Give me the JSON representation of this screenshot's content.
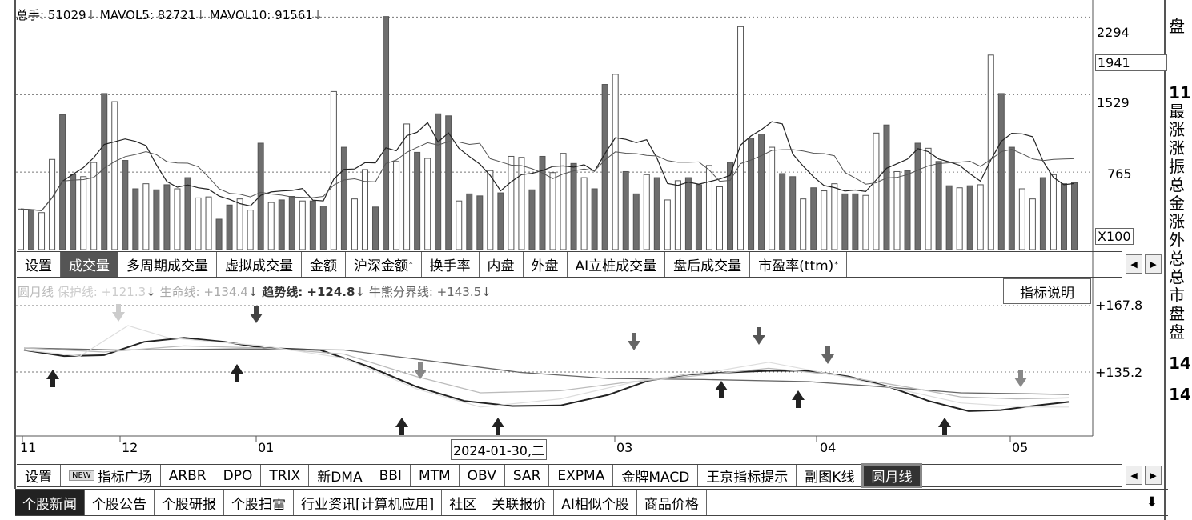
{
  "volume_legend": {
    "total": "总手: 51029",
    "mavol5": "MAVOL5: 82721",
    "mavol10": "MAVOL10: 91561",
    "arrow": "↓"
  },
  "volume_axis": {
    "l2294": "2294",
    "l1941": "1941",
    "l1529": "1529",
    "l765": "765",
    "unit": "X100"
  },
  "tabs1": [
    "设置",
    "成交量",
    "多周期成交量",
    "虚拟成交量",
    "金额",
    "沪深金额",
    "换手率",
    "内盘",
    "外盘",
    "AI立桩成交量",
    "盘后成交量",
    "市盈率(ttm)"
  ],
  "tabs1_star": "*",
  "indicator_legend": {
    "huyue": "圆月线",
    "baohu": "保护线: +121.3",
    "shengming": "生命线: +134.4",
    "qushi": "趋势线: +124.8",
    "niuxiong": "牛熊分界线: +143.5",
    "arrow": "↓"
  },
  "indicator_help": "指标说明",
  "indicator_axis": {
    "top": "+167.8",
    "mid": "+135.2"
  },
  "xaxis": {
    "m11": "11",
    "m12": "12",
    "m01": "01",
    "m03": "03",
    "m04": "04",
    "m05": "05",
    "cursor": "2024-01-30,二"
  },
  "tabs2": [
    "设置",
    "指标广场",
    "ARBR",
    "DPO",
    "TRIX",
    "新DMA",
    "BBI",
    "MTM",
    "OBV",
    "SAR",
    "EXPMA",
    "金牌MACD",
    "王京指标提示",
    "副图K线",
    "圆月线"
  ],
  "tabs2_new": "NEW",
  "news_tabs": [
    "个股新闻",
    "个股公告",
    "个股研报",
    "个股扫雷",
    "行业资讯[计算机应用]",
    "社区",
    "关联报价",
    "AI相似个股",
    "商品价格"
  ],
  "download_icon": "⬇",
  "scroll": {
    "left": "◀",
    "right": "▶"
  },
  "right_column": [
    "盘",
    "",
    "11",
    "最",
    "涨",
    "涨",
    "振",
    "总",
    "金",
    "涨",
    "外",
    "总",
    "总",
    "市",
    "盘",
    "盘",
    "",
    "14",
    "",
    "14"
  ],
  "colors": {
    "bar_up": "#ffffff",
    "bar_down": "#6e6e6e",
    "grid": "#777",
    "arrow": "#444"
  },
  "chart_data": {
    "type": "bar",
    "title": "",
    "volume_x100": [
      400,
      390,
      365,
      890,
      1330,
      740,
      720,
      860,
      1540,
      1460,
      880,
      600,
      650,
      590,
      640,
      600,
      710,
      510,
      520,
      300,
      440,
      500,
      390,
      1050,
      465,
      490,
      525,
      480,
      480,
      430,
      1560,
      1010,
      500,
      790,
      420,
      2300,
      870,
      1240,
      960,
      900,
      1340,
      1320,
      480,
      550,
      530,
      780,
      560,
      920,
      910,
      590,
      920,
      760,
      950,
      850,
      710,
      600,
      1630,
      1730,
      770,
      550,
      740,
      710,
      490,
      680,
      710,
      640,
      830,
      620,
      860,
      2200,
      1100,
      1140,
      1010,
      750,
      720,
      500,
      610,
      580,
      650,
      550,
      550,
      535,
      1150,
      1230,
      770,
      780,
      1050,
      1000,
      870,
      630,
      610,
      630,
      640,
      1920,
      1540,
      1010,
      600,
      500,
      710,
      740,
      650,
      660
    ],
    "ylim": [
      0,
      2400
    ],
    "ticks": [
      2294,
      1941,
      1529,
      765
    ]
  }
}
